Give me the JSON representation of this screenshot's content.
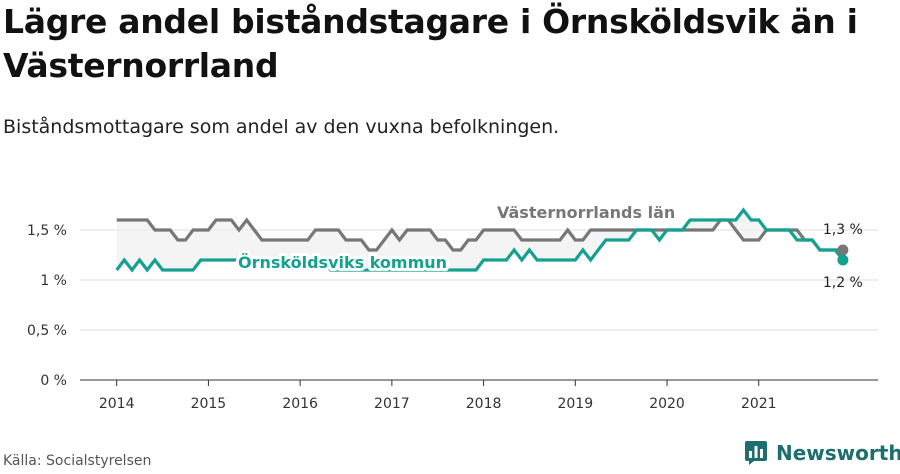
{
  "title": "Lägre andel biståndstagare i Örnsköldsvik än i Västernorrland",
  "subtitle": "Biståndsmottagare som andel av den vuxna befolkningen.",
  "source": "Källa: Socialstyrelsen",
  "brand": "Newsworthy",
  "colors": {
    "ornskoldsvik": "#15a190",
    "vasternorrland": "#777777",
    "brand": "#1c6e6f"
  },
  "chart_data": {
    "type": "line",
    "x_ticks": [
      "2014",
      "2015",
      "2016",
      "2017",
      "2018",
      "2019",
      "2020",
      "2021"
    ],
    "y_ticks": [
      "0 %",
      "0,5 %",
      "1 %",
      "1,5 %"
    ],
    "y_tick_values": [
      0,
      0.5,
      1,
      1.5
    ],
    "ylim": [
      0,
      1.8
    ],
    "xlim": [
      2013.6,
      2022.3
    ],
    "grid": true,
    "series": [
      {
        "name": "Västernorrlands län",
        "color": "#777777",
        "end_label": "1,3 %",
        "x": [
          2014.0,
          2014.083,
          2014.167,
          2014.25,
          2014.333,
          2014.417,
          2014.5,
          2014.583,
          2014.667,
          2014.75,
          2014.833,
          2014.917,
          2015.0,
          2015.083,
          2015.167,
          2015.25,
          2015.333,
          2015.417,
          2015.5,
          2015.583,
          2015.667,
          2015.75,
          2015.833,
          2015.917,
          2016.0,
          2016.083,
          2016.167,
          2016.25,
          2016.333,
          2016.417,
          2016.5,
          2016.583,
          2016.667,
          2016.75,
          2016.833,
          2016.917,
          2017.0,
          2017.083,
          2017.167,
          2017.25,
          2017.333,
          2017.417,
          2017.5,
          2017.583,
          2017.667,
          2017.75,
          2017.833,
          2017.917,
          2018.0,
          2018.083,
          2018.167,
          2018.25,
          2018.333,
          2018.417,
          2018.5,
          2018.583,
          2018.667,
          2018.75,
          2018.833,
          2018.917,
          2019.0,
          2019.083,
          2019.167,
          2019.25,
          2019.333,
          2019.417,
          2019.5,
          2019.583,
          2019.667,
          2019.75,
          2019.833,
          2019.917,
          2020.0,
          2020.083,
          2020.167,
          2020.25,
          2020.333,
          2020.417,
          2020.5,
          2020.583,
          2020.667,
          2020.75,
          2020.833,
          2020.917,
          2021.0,
          2021.083,
          2021.167,
          2021.25,
          2021.333,
          2021.417,
          2021.5,
          2021.583,
          2021.667,
          2021.75,
          2021.833,
          2021.917
        ],
        "y": [
          1.6,
          1.6,
          1.6,
          1.6,
          1.6,
          1.5,
          1.5,
          1.5,
          1.4,
          1.4,
          1.5,
          1.5,
          1.5,
          1.6,
          1.6,
          1.6,
          1.5,
          1.6,
          1.5,
          1.4,
          1.4,
          1.4,
          1.4,
          1.4,
          1.4,
          1.4,
          1.5,
          1.5,
          1.5,
          1.5,
          1.4,
          1.4,
          1.4,
          1.3,
          1.3,
          1.4,
          1.5,
          1.4,
          1.5,
          1.5,
          1.5,
          1.5,
          1.4,
          1.4,
          1.3,
          1.3,
          1.4,
          1.4,
          1.5,
          1.5,
          1.5,
          1.5,
          1.5,
          1.4,
          1.4,
          1.4,
          1.4,
          1.4,
          1.4,
          1.5,
          1.4,
          1.4,
          1.5,
          1.5,
          1.5,
          1.5,
          1.5,
          1.5,
          1.5,
          1.5,
          1.5,
          1.5,
          1.5,
          1.5,
          1.5,
          1.5,
          1.5,
          1.5,
          1.5,
          1.6,
          1.6,
          1.5,
          1.4,
          1.4,
          1.4,
          1.5,
          1.5,
          1.5,
          1.5,
          1.5,
          1.4,
          1.4,
          1.3,
          1.3,
          1.3,
          1.3
        ]
      },
      {
        "name": "Örnsköldsviks kommun",
        "color": "#15a190",
        "end_label": "1,2 %",
        "x": [
          2014.0,
          2014.083,
          2014.167,
          2014.25,
          2014.333,
          2014.417,
          2014.5,
          2014.583,
          2014.667,
          2014.75,
          2014.833,
          2014.917,
          2015.0,
          2015.083,
          2015.167,
          2015.25,
          2015.333,
          2015.417,
          2015.5,
          2015.583,
          2015.667,
          2015.75,
          2015.833,
          2015.917,
          2016.0,
          2016.083,
          2016.167,
          2016.25,
          2016.333,
          2016.417,
          2016.5,
          2016.583,
          2016.667,
          2016.75,
          2016.833,
          2016.917,
          2017.0,
          2017.083,
          2017.167,
          2017.25,
          2017.333,
          2017.417,
          2017.5,
          2017.583,
          2017.667,
          2017.75,
          2017.833,
          2017.917,
          2018.0,
          2018.083,
          2018.167,
          2018.25,
          2018.333,
          2018.417,
          2018.5,
          2018.583,
          2018.667,
          2018.75,
          2018.833,
          2018.917,
          2019.0,
          2019.083,
          2019.167,
          2019.25,
          2019.333,
          2019.417,
          2019.5,
          2019.583,
          2019.667,
          2019.75,
          2019.833,
          2019.917,
          2020.0,
          2020.083,
          2020.167,
          2020.25,
          2020.333,
          2020.417,
          2020.5,
          2020.583,
          2020.667,
          2020.75,
          2020.833,
          2020.917,
          2021.0,
          2021.083,
          2021.167,
          2021.25,
          2021.333,
          2021.417,
          2021.5,
          2021.583,
          2021.667,
          2021.75,
          2021.833,
          2021.917
        ],
        "y": [
          1.1,
          1.2,
          1.1,
          1.2,
          1.1,
          1.2,
          1.1,
          1.1,
          1.1,
          1.1,
          1.1,
          1.2,
          1.2,
          1.2,
          1.2,
          1.2,
          1.2,
          1.2,
          1.2,
          1.2,
          1.2,
          1.2,
          1.2,
          1.2,
          1.2,
          1.2,
          1.2,
          1.2,
          1.1,
          1.1,
          1.1,
          1.1,
          1.1,
          1.1,
          1.1,
          1.1,
          1.1,
          1.1,
          1.1,
          1.1,
          1.1,
          1.1,
          1.1,
          1.1,
          1.1,
          1.1,
          1.1,
          1.1,
          1.2,
          1.2,
          1.2,
          1.2,
          1.3,
          1.2,
          1.3,
          1.2,
          1.2,
          1.2,
          1.2,
          1.2,
          1.2,
          1.3,
          1.2,
          1.3,
          1.4,
          1.4,
          1.4,
          1.4,
          1.5,
          1.5,
          1.5,
          1.4,
          1.5,
          1.5,
          1.5,
          1.6,
          1.6,
          1.6,
          1.6,
          1.6,
          1.6,
          1.6,
          1.7,
          1.6,
          1.6,
          1.5,
          1.5,
          1.5,
          1.5,
          1.4,
          1.4,
          1.4,
          1.3,
          1.3,
          1.3,
          1.2
        ]
      }
    ]
  }
}
